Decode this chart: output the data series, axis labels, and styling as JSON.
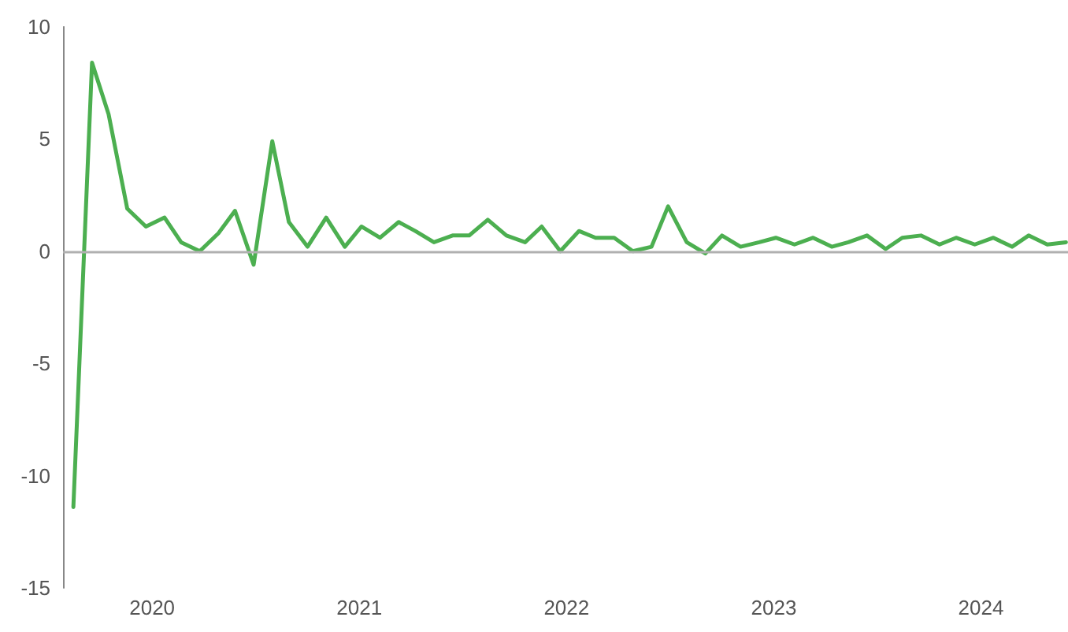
{
  "chart_data": {
    "type": "line",
    "x": [
      2019.62,
      2019.71,
      2019.79,
      2019.88,
      2019.97,
      2020.06,
      2020.14,
      2020.23,
      2020.32,
      2020.4,
      2020.49,
      2020.58,
      2020.66,
      2020.75,
      2020.84,
      2020.93,
      2021.01,
      2021.1,
      2021.19,
      2021.27,
      2021.36,
      2021.45,
      2021.53,
      2021.62,
      2021.71,
      2021.8,
      2021.88,
      2021.97,
      2022.06,
      2022.14,
      2022.23,
      2022.32,
      2022.41,
      2022.49,
      2022.58,
      2022.67,
      2022.75,
      2022.84,
      2022.93,
      2023.01,
      2023.1,
      2023.19,
      2023.28,
      2023.36,
      2023.45,
      2023.54,
      2023.62,
      2023.71,
      2023.8,
      2023.88,
      2023.97,
      2024.06,
      2024.15,
      2024.23,
      2024.32,
      2024.41
    ],
    "series": [
      {
        "color": "#4caf50",
        "values": [
          -11.4,
          8.4,
          6.1,
          1.9,
          1.1,
          1.5,
          0.4,
          0.0,
          0.8,
          1.8,
          -0.6,
          4.9,
          1.3,
          0.2,
          1.5,
          0.2,
          1.1,
          0.6,
          1.3,
          0.9,
          0.4,
          0.7,
          0.7,
          1.4,
          0.7,
          0.4,
          1.1,
          0.0,
          0.9,
          0.6,
          0.6,
          0.0,
          0.2,
          2.0,
          0.4,
          -0.1,
          0.7,
          0.2,
          0.4,
          0.6,
          0.3,
          0.6,
          0.2,
          0.4,
          0.7,
          0.1,
          0.6,
          0.7,
          0.3,
          0.6,
          0.3,
          0.6,
          0.2,
          0.7,
          0.3,
          0.4
        ]
      }
    ],
    "xlim": [
      2019.57,
      2024.42
    ],
    "xticks": [
      2020,
      2021,
      2022,
      2023,
      2024
    ],
    "ylim": [
      -15,
      10
    ],
    "yticks": [
      -15,
      -10,
      -5,
      0,
      5,
      10
    ],
    "ref_lines": [
      {
        "axis": "y",
        "value": 0,
        "color": "#b0b0b0"
      }
    ],
    "grid": false,
    "marker": "none",
    "line_style": "solid"
  }
}
